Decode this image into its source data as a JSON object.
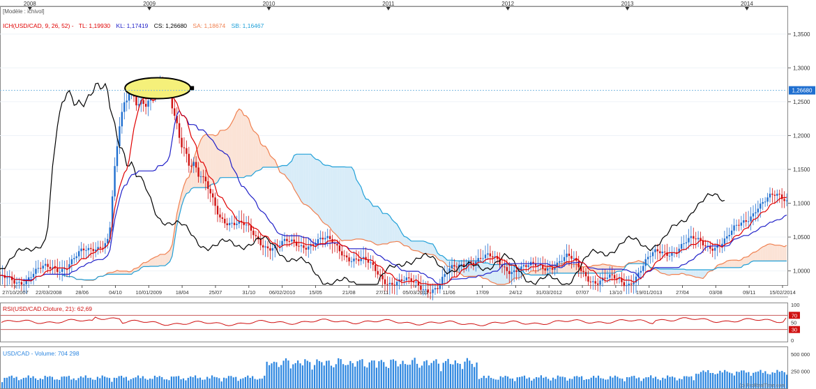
{
  "header": {
    "model": "[Modèle : ichivol]",
    "ich_label": "ICH(USD/CAD, 9, 26, 52) -",
    "tl": "TL: 1,19930",
    "kl": "KL: 1,17419",
    "cs": "CS: 1,26680",
    "sa": "SA: 1,18674",
    "sb": "SB: 1,16467"
  },
  "years": [
    "2008",
    "2009",
    "2010",
    "2011",
    "2012",
    "2013",
    "2014"
  ],
  "date_ticks": [
    "27/10/2007",
    "22/03/2008",
    "28/06",
    "04/10",
    "10/01/2009",
    "18/04",
    "25/07",
    "31/10",
    "06/02/2010",
    "15/05",
    "21/08",
    "27/11",
    "05/03/2011",
    "11/06",
    "17/09",
    "24/12",
    "31/03/2012",
    "07/07",
    "13/10",
    "19/01/2013",
    "27/04",
    "03/08",
    "09/11",
    "15/02/2014"
  ],
  "price_axis": [
    "1,3500",
    "1,3000",
    "1,2500",
    "1,2000",
    "1,1500",
    "1,1000",
    "1,0500",
    "1,0000"
  ],
  "last_price_label": "1,26680",
  "rsi": {
    "title": "RSI(USD/CAD.Cloture, 21): 62,69",
    "axis": [
      "100",
      "70",
      "50",
      "30",
      "0"
    ]
  },
  "volume": {
    "title": "USD/CAD - Volume: 704 298",
    "axis": [
      "500 000",
      "250 000"
    ]
  },
  "footer": "(c) ProRealTime.com",
  "colors": {
    "tenkan": "#e00000",
    "kijun": "#2020c8",
    "chikou": "#000000",
    "ssa": "#f08050",
    "ssb": "#20a0d8",
    "cloud_bull": "#fbe3d6",
    "cloud_bear": "#d8ecf8",
    "candle_up": "#1f6fd0",
    "candle_down": "#d01010",
    "rsi_line": "#d01010",
    "volume_bar": "#2c86e0",
    "highlight_fill": "#f5f07a"
  },
  "chart_data": [
    {
      "type": "line",
      "title": "ICH(USD/CAD, 9, 26, 52)",
      "ylim": [
        0.98,
        1.39
      ],
      "x_range": [
        "2007-10",
        "2014-05"
      ],
      "series": [
        {
          "name": "TL",
          "last": 1.1993
        },
        {
          "name": "KL",
          "last": 1.17419
        },
        {
          "name": "CS",
          "last": 1.2668
        },
        {
          "name": "SA",
          "last": 1.18674
        },
        {
          "name": "SB",
          "last": 1.16467
        }
      ],
      "close_approx": {
        "x": [
          "2007-10",
          "2008-01",
          "2008-04",
          "2008-07",
          "2008-09",
          "2008-10",
          "2008-11",
          "2009-01",
          "2009-03",
          "2009-05",
          "2009-08",
          "2009-11",
          "2010-02",
          "2010-05",
          "2010-08",
          "2010-11",
          "2011-03",
          "2011-06",
          "2011-09",
          "2011-12",
          "2012-03",
          "2012-07",
          "2012-10",
          "2013-01",
          "2013-04",
          "2013-08",
          "2013-11",
          "2014-02",
          "2014-04"
        ],
        "y": [
          0.98,
          1.0,
          1.01,
          1.02,
          1.05,
          1.2,
          1.27,
          1.24,
          1.28,
          1.16,
          1.08,
          1.06,
          1.04,
          1.04,
          1.03,
          1.01,
          0.98,
          0.97,
          1.02,
          1.02,
          1.0,
          1.01,
          0.99,
          0.99,
          1.02,
          1.04,
          1.05,
          1.1,
          1.1
        ]
      }
    },
    {
      "type": "line",
      "title": "RSI(USD/CAD.Cloture, 21)",
      "ylim": [
        0,
        100
      ],
      "last": 62.69
    },
    {
      "type": "bar",
      "title": "USD/CAD - Volume",
      "last": 704298
    }
  ]
}
